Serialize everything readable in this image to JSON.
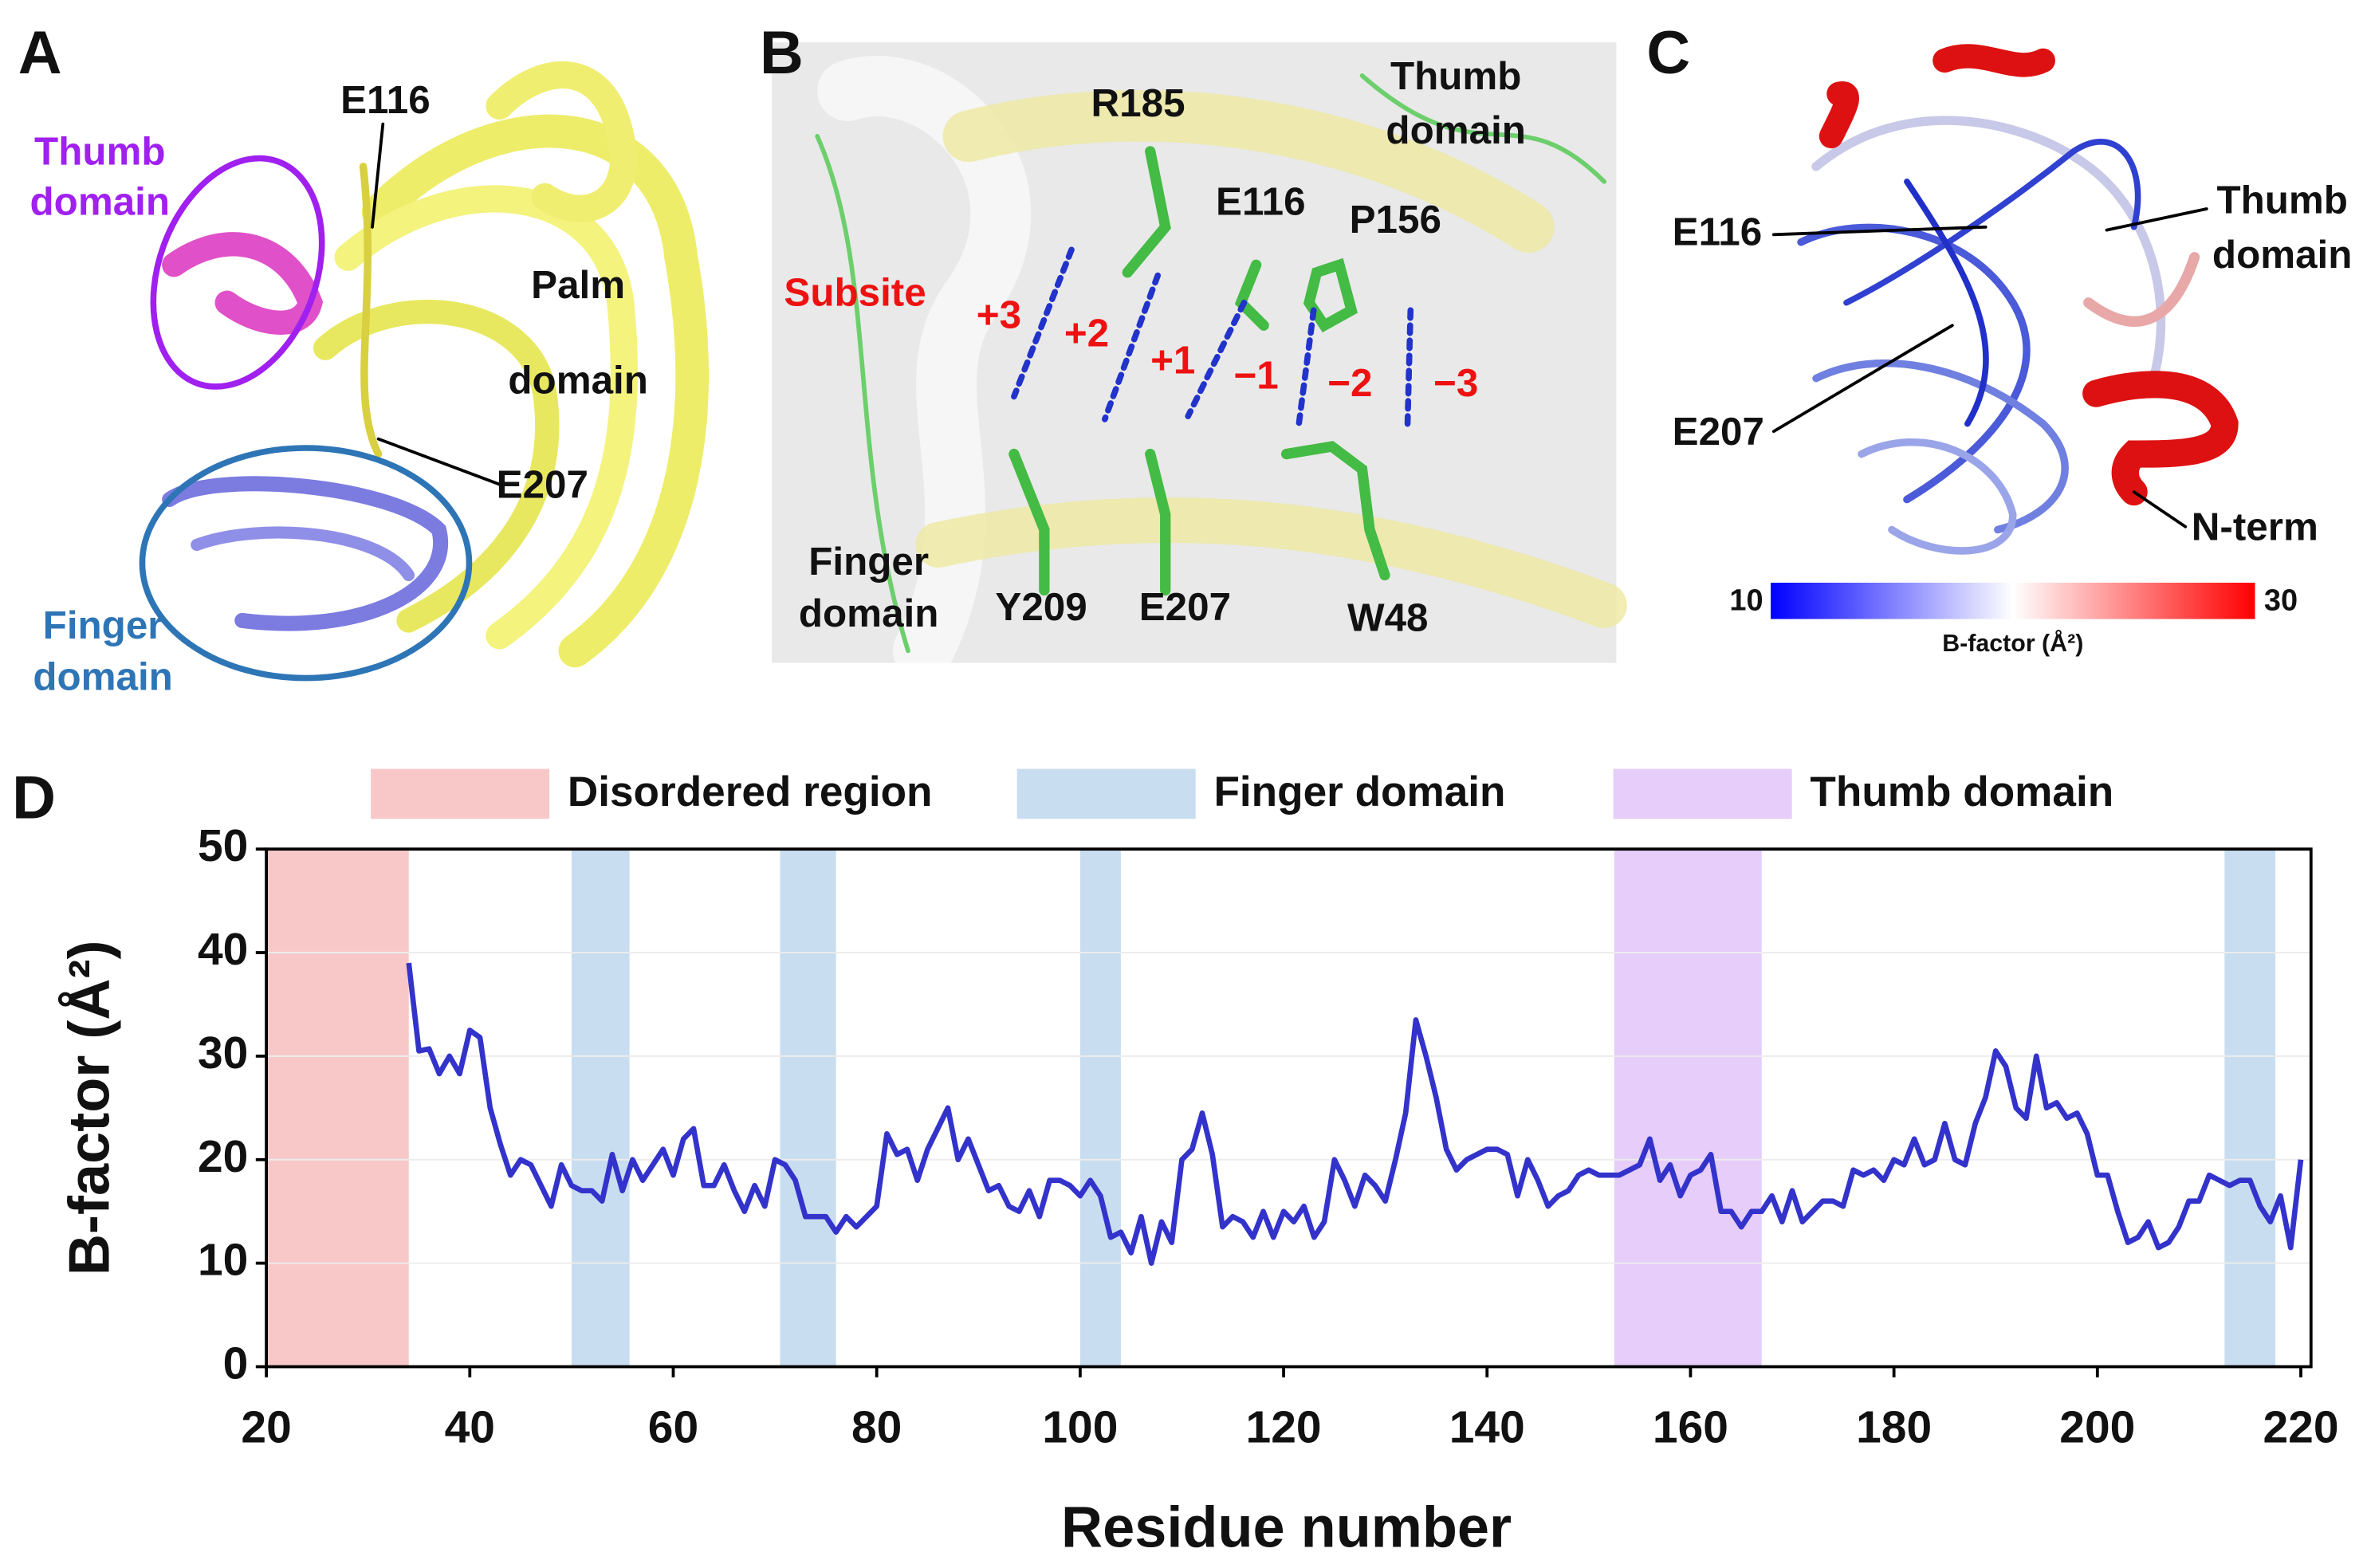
{
  "panel_a": {
    "letter": "A",
    "residues": [
      "E116",
      "E207"
    ],
    "thumb": [
      "Thumb",
      "domain"
    ],
    "palm": [
      "Palm",
      "domain"
    ],
    "finger": [
      "Finger",
      "domain"
    ]
  },
  "panel_b": {
    "letter": "B",
    "residues": [
      "R185",
      "E116",
      "P156",
      "Y209",
      "E207",
      "W48"
    ],
    "thumb": [
      "Thumb",
      "domain"
    ],
    "finger": [
      "Finger",
      "domain"
    ],
    "subsite": "Subsite",
    "subsites": [
      "+3",
      "+2",
      "+1",
      "−1",
      "−2",
      "−3"
    ]
  },
  "panel_c": {
    "letter": "C",
    "residues": [
      "E116",
      "E207"
    ],
    "thumb": [
      "Thumb",
      "domain"
    ],
    "n_term": "N-term",
    "colorbar": {
      "label": "B-factor (Å²)",
      "lim": [
        10,
        30
      ],
      "colors": [
        "#0000ff",
        "#ffffff",
        "#ff0000"
      ]
    }
  },
  "chart_data": {
    "type": "line",
    "panel_label": "D",
    "x_label": "Residue number",
    "y_label": "B-factor (Å²)",
    "color": "#3333cc",
    "x": [
      34,
      35,
      36,
      37,
      38,
      39,
      40,
      41,
      42,
      43,
      44,
      45,
      46,
      47,
      48,
      49,
      50,
      51,
      52,
      53,
      54,
      55,
      56,
      57,
      58,
      59,
      60,
      61,
      62,
      63,
      64,
      65,
      66,
      67,
      68,
      69,
      70,
      71,
      72,
      73,
      74,
      75,
      76,
      77,
      78,
      79,
      80,
      81,
      82,
      83,
      84,
      85,
      86,
      87,
      88,
      89,
      90,
      91,
      92,
      93,
      94,
      95,
      96,
      97,
      98,
      99,
      100,
      101,
      102,
      103,
      104,
      105,
      106,
      107,
      108,
      109,
      110,
      111,
      112,
      113,
      114,
      115,
      116,
      117,
      118,
      119,
      120,
      121,
      122,
      123,
      124,
      125,
      126,
      127,
      128,
      129,
      130,
      131,
      132,
      133,
      134,
      135,
      136,
      137,
      138,
      139,
      140,
      141,
      142,
      143,
      144,
      145,
      146,
      147,
      148,
      149,
      150,
      151,
      152,
      153,
      154,
      155,
      156,
      157,
      158,
      159,
      160,
      161,
      162,
      163,
      164,
      165,
      166,
      167,
      168,
      169,
      170,
      171,
      172,
      173,
      174,
      175,
      176,
      177,
      178,
      179,
      180,
      181,
      182,
      183,
      184,
      185,
      186,
      187,
      188,
      189,
      190,
      191,
      192,
      193,
      194,
      195,
      196,
      197,
      198,
      199,
      200,
      201,
      202,
      203,
      204,
      205,
      206,
      207,
      208,
      209,
      210,
      211,
      212,
      213,
      214,
      215,
      216,
      217,
      218,
      219,
      220
    ],
    "values": [
      39,
      30.5,
      30.7,
      28.3,
      30,
      28.3,
      32.5,
      31.8,
      25,
      21.5,
      18.5,
      20,
      19.5,
      17.5,
      15.5,
      19.5,
      17.5,
      17,
      17,
      16,
      20.5,
      17,
      20,
      18,
      19.5,
      21,
      18.5,
      22,
      23,
      17.5,
      17.5,
      19.5,
      17,
      15,
      17.5,
      15.5,
      20,
      19.5,
      18,
      14.5,
      14.5,
      14.5,
      13,
      14.5,
      13.5,
      14.5,
      15.5,
      22.5,
      20.5,
      21,
      18,
      21,
      23,
      25,
      20,
      22,
      19.5,
      17,
      17.5,
      15.5,
      15,
      17,
      14.5,
      18,
      18,
      17.5,
      16.5,
      18,
      16.5,
      12.5,
      13,
      11,
      14.5,
      10,
      14,
      12,
      20,
      21,
      24.5,
      20.5,
      13.5,
      14.5,
      14,
      12.5,
      15,
      12.5,
      15,
      14,
      15.5,
      12.5,
      14,
      20,
      18,
      15.5,
      18.5,
      17.5,
      16,
      20,
      24.5,
      33.5,
      30,
      26,
      21,
      19,
      20,
      20.5,
      21,
      21,
      20.5,
      16.5,
      20,
      18,
      15.5,
      16.5,
      17,
      18.5,
      19,
      18.5,
      18.5,
      18.5,
      19,
      19.5,
      22,
      18,
      19.5,
      16.5,
      18.5,
      19,
      20.5,
      15,
      15,
      13.5,
      15,
      15,
      16.5,
      14,
      17,
      14,
      15,
      16,
      16,
      15.5,
      19,
      18.5,
      19,
      18,
      20,
      19.5,
      22,
      19.5,
      20,
      23.5,
      20,
      19.5,
      23.5,
      26,
      30.5,
      29,
      25,
      24,
      30,
      25,
      25.5,
      24,
      24.5,
      22.5,
      18.5,
      18.5,
      15,
      12,
      12.5,
      14,
      11.5,
      12,
      13.5,
      16,
      16,
      18.5,
      18,
      17.5,
      18,
      18,
      15.5,
      14,
      16.5,
      11.5,
      20
    ],
    "bands": [
      {
        "name": "Disordered region",
        "color": "#f8c8c8",
        "ranges": [
          [
            20,
            34
          ]
        ]
      },
      {
        "name": "Finger domain",
        "color": "#c8ddf0",
        "ranges": [
          [
            50,
            55.7
          ],
          [
            70.5,
            76
          ],
          [
            100,
            104
          ],
          [
            212.5,
            217.5
          ]
        ]
      },
      {
        "name": "Thumb domain",
        "color": "#e6cdfa",
        "ranges": [
          [
            152.5,
            167
          ]
        ]
      }
    ],
    "xlim": [
      20,
      221
    ],
    "ylim": [
      0,
      50
    ],
    "xticks": [
      20,
      40,
      60,
      80,
      100,
      120,
      140,
      160,
      180,
      200,
      220
    ],
    "yticks": [
      0,
      10,
      20,
      30,
      40,
      50
    ],
    "grid": true
  }
}
